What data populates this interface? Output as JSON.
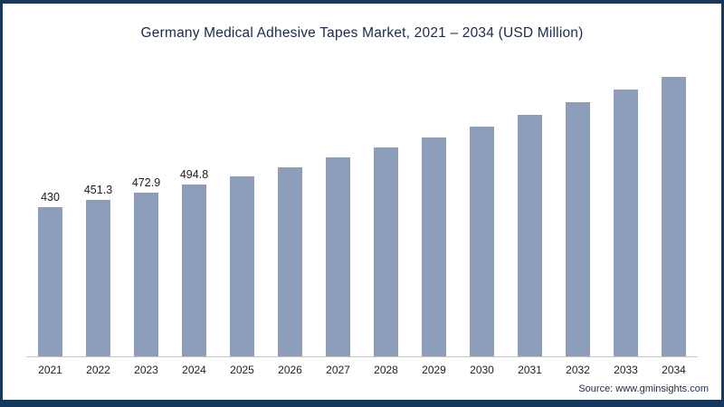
{
  "title": "Germany Medical Adhesive Tapes Market, 2021 – 2034 (USD Million)",
  "source": {
    "prefix": "Source: ",
    "link": "www.gminsights.com"
  },
  "colors": {
    "bar": "#8c9eba",
    "frame": "#14395c",
    "title_text": "#1b2b4d",
    "baseline": "#c6c6c6"
  },
  "chart_data": {
    "type": "bar",
    "title": "Germany Medical Adhesive Tapes Market, 2021 – 2034 (USD Million)",
    "xlabel": "",
    "ylabel": "",
    "categories": [
      "2021",
      "2022",
      "2023",
      "2024",
      "2025",
      "2026",
      "2027",
      "2028",
      "2029",
      "2030",
      "2031",
      "2032",
      "2033",
      "2034"
    ],
    "values": [
      430,
      451.3,
      472.9,
      494.8,
      519.6,
      545.6,
      572.9,
      601.5,
      631.6,
      663.2,
      696.3,
      731.1,
      767.7,
      806.1
    ],
    "data_labels": [
      "430",
      "451.3",
      "472.9",
      "494.8",
      null,
      null,
      null,
      null,
      null,
      null,
      null,
      null,
      null,
      null
    ],
    "ylim": [
      0,
      860
    ],
    "grid": false,
    "legend": false,
    "bar_color": "#8c9eba",
    "note": "Values for 2025-2034 estimated from bar heights; only 2021-2024 carry visible data labels"
  }
}
